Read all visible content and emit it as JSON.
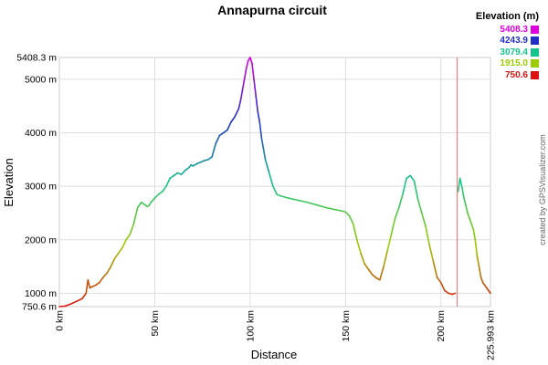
{
  "chart_data": {
    "type": "line",
    "title": "Annapurna circuit",
    "xlabel": "Distance",
    "ylabel": "Elevation",
    "xlim": [
      0,
      225.993
    ],
    "ylim": [
      750.6,
      5408.3
    ],
    "x_ticks": [
      {
        "value": 0,
        "label": "0 km"
      },
      {
        "value": 50,
        "label": "50 km"
      },
      {
        "value": 100,
        "label": "100 km"
      },
      {
        "value": 150,
        "label": "150 km"
      },
      {
        "value": 200,
        "label": "200 km"
      },
      {
        "value": 225.993,
        "label": "225.993 km"
      }
    ],
    "y_ticks": [
      {
        "value": 750.6,
        "label": "750.6 m"
      },
      {
        "value": 1000,
        "label": "1000 m"
      },
      {
        "value": 2000,
        "label": "2000 m"
      },
      {
        "value": 3000,
        "label": "3000 m"
      },
      {
        "value": 4000,
        "label": "4000 m"
      },
      {
        "value": 5000,
        "label": "5000 m"
      },
      {
        "value": 5408.3,
        "label": "5408.3 m"
      }
    ],
    "grid": true,
    "marker_line_x": 208.5,
    "legend": {
      "title": "Elevation (m)",
      "position": "top-right",
      "entries": [
        {
          "label": "5408.3",
          "color": "#dd00dd"
        },
        {
          "label": "4243.9",
          "color": "#1f2fc8"
        },
        {
          "label": "3079.4",
          "color": "#14c48c"
        },
        {
          "label": "1915.0",
          "color": "#9ccc00"
        },
        {
          "label": "750.6",
          "color": "#dd1111"
        }
      ]
    },
    "credit": "created by GPSVisualizer.com",
    "series": [
      {
        "x": [
          0,
          3,
          6,
          9,
          12,
          14,
          15,
          16,
          17,
          19,
          21,
          23,
          25,
          27,
          29,
          31,
          33,
          35,
          37,
          39,
          41,
          43,
          45,
          46,
          47,
          48,
          50,
          52,
          54,
          56,
          58,
          60,
          62,
          64,
          66,
          68,
          69,
          70,
          72,
          74,
          76,
          78,
          80,
          82,
          84,
          86,
          88,
          90,
          92,
          94,
          95,
          96,
          97,
          98,
          99,
          100,
          101,
          102,
          103,
          104,
          105,
          106,
          107,
          108,
          110,
          112,
          114,
          116,
          118,
          120,
          125,
          130,
          135,
          140,
          145,
          148,
          150,
          152,
          154,
          156,
          158,
          160,
          162,
          164,
          166,
          168,
          170,
          172,
          174,
          176,
          178,
          180,
          182,
          184,
          186,
          188,
          190,
          192,
          194,
          196,
          198,
          200,
          202,
          204,
          206,
          207.5
        ],
        "y": [
          750.6,
          760,
          800,
          850,
          900,
          1000,
          1250,
          1100,
          1120,
          1150,
          1200,
          1300,
          1380,
          1500,
          1650,
          1750,
          1850,
          2000,
          2100,
          2300,
          2600,
          2700,
          2650,
          2620,
          2640,
          2700,
          2780,
          2850,
          2900,
          3000,
          3150,
          3200,
          3250,
          3220,
          3300,
          3350,
          3400,
          3380,
          3420,
          3450,
          3480,
          3500,
          3550,
          3800,
          3950,
          4000,
          4050,
          4200,
          4300,
          4450,
          4600,
          4800,
          5000,
          5200,
          5350,
          5408.3,
          5300,
          5000,
          4700,
          4400,
          4200,
          3900,
          3700,
          3500,
          3250,
          3000,
          2850,
          2820,
          2800,
          2780,
          2740,
          2700,
          2650,
          2600,
          2560,
          2540,
          2520,
          2450,
          2300,
          2000,
          1750,
          1550,
          1450,
          1350,
          1290,
          1250,
          1500,
          1800,
          2100,
          2400,
          2600,
          2850,
          3150,
          3200,
          3100,
          2750,
          2500,
          2250,
          1900,
          1600,
          1300,
          1200,
          1050,
          1000,
          980,
          1000
        ]
      },
      {
        "x": [
          209,
          210,
          211,
          212,
          213,
          214,
          215,
          216,
          217,
          218,
          219,
          220,
          221,
          222,
          223,
          224,
          225,
          225.993
        ],
        "y": [
          2900,
          3150,
          3000,
          2800,
          2650,
          2500,
          2400,
          2300,
          2200,
          2000,
          1700,
          1500,
          1300,
          1200,
          1150,
          1100,
          1050,
          1000
        ]
      }
    ]
  }
}
